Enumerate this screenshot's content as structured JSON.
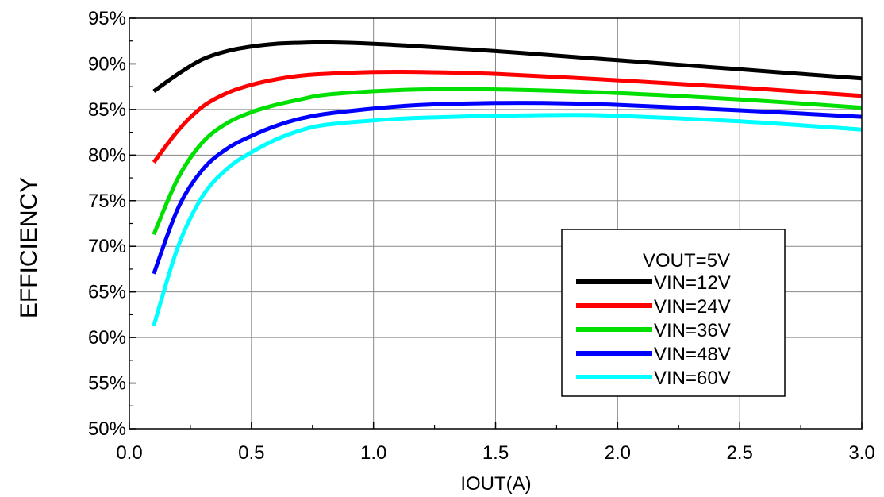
{
  "chart_data": {
    "type": "line",
    "title": "",
    "xlabel": "IOUT(A)",
    "ylabel": "EFFICIENCY",
    "xlim": [
      0.0,
      3.0
    ],
    "ylim": [
      50,
      95
    ],
    "x_ticks": [
      "0.0",
      "0.5",
      "1.0",
      "1.5",
      "2.0",
      "2.5",
      "3.0"
    ],
    "y_ticks": [
      "50%",
      "55%",
      "60%",
      "65%",
      "70%",
      "75%",
      "80%",
      "85%",
      "90%",
      "95%"
    ],
    "grid": true,
    "legend_title": "VOUT=5V",
    "legend_position": "bottom-right",
    "series": [
      {
        "name": "VIN=12V",
        "color": "#000000",
        "points": [
          [
            0.1,
            87.0
          ],
          [
            0.2,
            88.9
          ],
          [
            0.3,
            90.5
          ],
          [
            0.4,
            91.4
          ],
          [
            0.5,
            91.9
          ],
          [
            0.6,
            92.2
          ],
          [
            0.7,
            92.3
          ],
          [
            0.8,
            92.35
          ],
          [
            1.0,
            92.2
          ],
          [
            1.2,
            91.9
          ],
          [
            1.5,
            91.4
          ],
          [
            1.8,
            90.8
          ],
          [
            2.0,
            90.4
          ],
          [
            2.5,
            89.4
          ],
          [
            3.0,
            88.4
          ]
        ]
      },
      {
        "name": "VIN=24V",
        "color": "#ff0000",
        "points": [
          [
            0.1,
            79.2
          ],
          [
            0.2,
            82.7
          ],
          [
            0.3,
            85.3
          ],
          [
            0.4,
            86.8
          ],
          [
            0.5,
            87.7
          ],
          [
            0.6,
            88.3
          ],
          [
            0.7,
            88.7
          ],
          [
            0.8,
            88.9
          ],
          [
            1.0,
            89.1
          ],
          [
            1.2,
            89.1
          ],
          [
            1.5,
            88.9
          ],
          [
            2.0,
            88.2
          ],
          [
            2.5,
            87.4
          ],
          [
            3.0,
            86.5
          ]
        ]
      },
      {
        "name": "VIN=36V",
        "color": "#00e000",
        "points": [
          [
            0.1,
            71.3
          ],
          [
            0.2,
            77.5
          ],
          [
            0.3,
            81.4
          ],
          [
            0.4,
            83.5
          ],
          [
            0.5,
            84.7
          ],
          [
            0.6,
            85.5
          ],
          [
            0.7,
            86.1
          ],
          [
            0.8,
            86.6
          ],
          [
            1.0,
            87.0
          ],
          [
            1.2,
            87.2
          ],
          [
            1.5,
            87.2
          ],
          [
            2.0,
            86.8
          ],
          [
            2.5,
            86.1
          ],
          [
            3.0,
            85.2
          ]
        ]
      },
      {
        "name": "VIN=48V",
        "color": "#0000ff",
        "points": [
          [
            0.1,
            67.0
          ],
          [
            0.2,
            74.2
          ],
          [
            0.3,
            78.4
          ],
          [
            0.4,
            80.7
          ],
          [
            0.5,
            82.1
          ],
          [
            0.6,
            83.2
          ],
          [
            0.7,
            84.0
          ],
          [
            0.8,
            84.5
          ],
          [
            1.0,
            85.1
          ],
          [
            1.2,
            85.5
          ],
          [
            1.5,
            85.7
          ],
          [
            1.7,
            85.7
          ],
          [
            2.0,
            85.5
          ],
          [
            2.5,
            84.9
          ],
          [
            3.0,
            84.2
          ]
        ]
      },
      {
        "name": "VIN=60V",
        "color": "#00ffff",
        "points": [
          [
            0.1,
            61.3
          ],
          [
            0.2,
            70.0
          ],
          [
            0.3,
            75.5
          ],
          [
            0.4,
            78.5
          ],
          [
            0.5,
            80.3
          ],
          [
            0.6,
            81.7
          ],
          [
            0.7,
            82.7
          ],
          [
            0.8,
            83.3
          ],
          [
            1.0,
            83.8
          ],
          [
            1.2,
            84.1
          ],
          [
            1.5,
            84.3
          ],
          [
            1.8,
            84.4
          ],
          [
            2.0,
            84.3
          ],
          [
            2.5,
            83.7
          ],
          [
            3.0,
            82.8
          ]
        ]
      }
    ]
  }
}
